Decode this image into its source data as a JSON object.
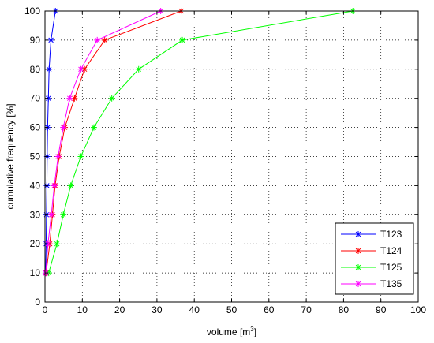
{
  "chart_data": {
    "type": "line",
    "xlabel": {
      "text": "volume [m",
      "superscript": "3",
      "suffix": "]"
    },
    "ylabel": "cumulative frequency [%]",
    "xlim": [
      0,
      100
    ],
    "ylim": [
      0,
      100
    ],
    "xticks": [
      0,
      10,
      20,
      30,
      40,
      50,
      60,
      70,
      80,
      90,
      100
    ],
    "yticks": [
      0,
      10,
      20,
      30,
      40,
      50,
      60,
      70,
      80,
      90,
      100
    ],
    "grid": true,
    "grid_style": "dotted",
    "marker": "*",
    "legend_position": "bottom-right",
    "series": [
      {
        "name": "T123",
        "color": "#0000ff",
        "points": [
          [
            0.2,
            10
          ],
          [
            0.3,
            20
          ],
          [
            0.4,
            30
          ],
          [
            0.5,
            40
          ],
          [
            0.6,
            50
          ],
          [
            0.7,
            60
          ],
          [
            0.9,
            70
          ],
          [
            1.1,
            80
          ],
          [
            1.6,
            90
          ],
          [
            2.8,
            100
          ]
        ]
      },
      {
        "name": "T124",
        "color": "#ff0000",
        "points": [
          [
            0.3,
            10
          ],
          [
            1.3,
            20
          ],
          [
            2.0,
            30
          ],
          [
            2.7,
            40
          ],
          [
            3.8,
            50
          ],
          [
            5.3,
            60
          ],
          [
            7.9,
            70
          ],
          [
            10.6,
            80
          ],
          [
            16.0,
            90
          ],
          [
            36.5,
            100
          ]
        ]
      },
      {
        "name": "T125",
        "color": "#00ff00",
        "points": [
          [
            1.0,
            10
          ],
          [
            3.2,
            20
          ],
          [
            4.9,
            30
          ],
          [
            6.9,
            40
          ],
          [
            9.6,
            50
          ],
          [
            13.1,
            60
          ],
          [
            17.9,
            70
          ],
          [
            25.1,
            80
          ],
          [
            36.8,
            90
          ],
          [
            82.5,
            100
          ]
        ]
      },
      {
        "name": "T135",
        "color": "#ff00ff",
        "points": [
          [
            0.2,
            10
          ],
          [
            0.8,
            20
          ],
          [
            1.7,
            30
          ],
          [
            2.5,
            40
          ],
          [
            3.5,
            50
          ],
          [
            4.9,
            60
          ],
          [
            6.6,
            70
          ],
          [
            9.6,
            80
          ],
          [
            14.0,
            90
          ],
          [
            31.0,
            100
          ]
        ]
      }
    ]
  }
}
